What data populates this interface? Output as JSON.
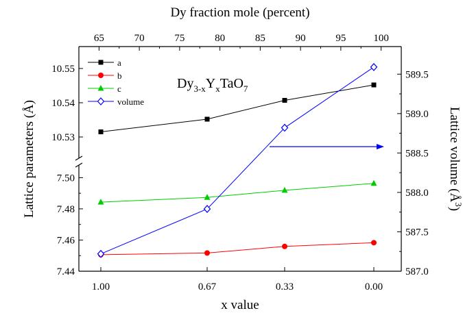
{
  "chart_data": {
    "type": "line",
    "x_bottom": {
      "label": "x value",
      "categories": [
        "1.00",
        "0.67",
        "0.33",
        "0.00"
      ]
    },
    "x_top": {
      "label": "Dy fraction mole (percent)",
      "ticks": [
        "65",
        "70",
        "75",
        "80",
        "85",
        "90",
        "95",
        "100"
      ],
      "range": [
        62.5,
        102.5
      ]
    },
    "y_left": {
      "label": "Lattice parameters (Å)",
      "upper_segment": {
        "range": [
          10.525,
          10.555
        ],
        "ticks": [
          "10.53",
          "10.54",
          "10.55"
        ]
      },
      "lower_segment": {
        "range": [
          7.44,
          7.505
        ],
        "ticks": [
          "7.44",
          "7.46",
          "7.48",
          "7.50"
        ]
      }
    },
    "y_right": {
      "label_main": "Lattice volume (Å",
      "label_sup": "3",
      "label_end": ")",
      "range": [
        587.0,
        589.85
      ],
      "ticks": [
        "587.0",
        "587.5",
        "588.0",
        "588.5",
        "589.0",
        "589.5"
      ]
    },
    "annotation": {
      "base": "Dy",
      "sub1": "3-x",
      "mid": "Y",
      "sub2": "x",
      "end": "TaO",
      "sub3": "7"
    },
    "series": [
      {
        "name": "a",
        "axis": "left-upper",
        "marker": "square",
        "color": "#000000",
        "values": [
          10.5315,
          10.5352,
          10.5407,
          10.5452
        ]
      },
      {
        "name": "b",
        "axis": "left-lower",
        "marker": "circle",
        "color": "#ff0000",
        "values": [
          7.4506,
          7.4517,
          7.4559,
          7.4583
        ]
      },
      {
        "name": "c",
        "axis": "left-lower",
        "marker": "triangle",
        "color": "#00cc00",
        "values": [
          7.4843,
          7.4873,
          7.4919,
          7.4963
        ]
      },
      {
        "name": "volume",
        "axis": "right",
        "marker": "diamond",
        "color": "#0000ff",
        "values": [
          587.22,
          587.79,
          588.82,
          589.59
        ]
      }
    ],
    "arrow": {
      "color": "#0000ff",
      "direction": "right",
      "y_value": 588.58
    }
  }
}
